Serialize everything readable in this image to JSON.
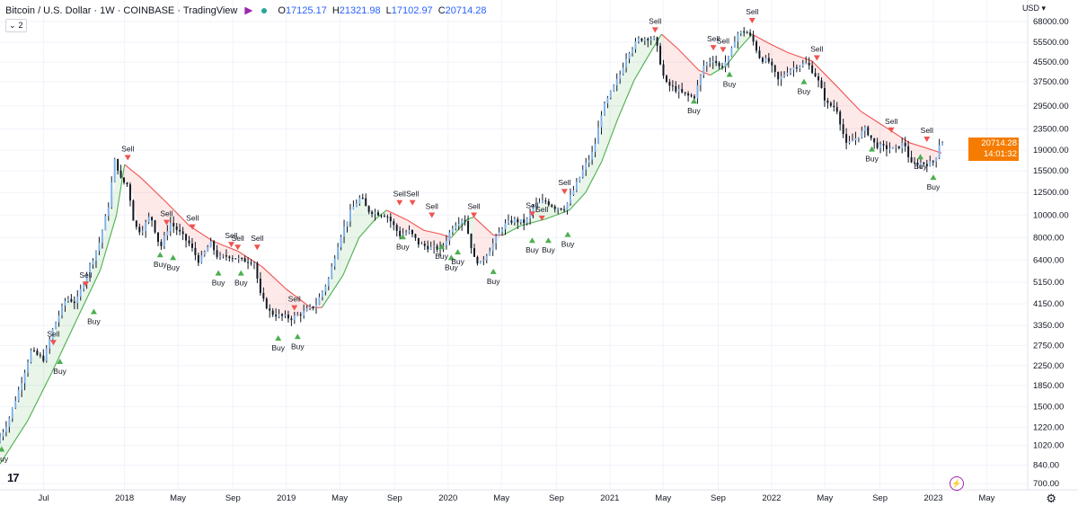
{
  "header": {
    "title": "Bitcoin / U.S. Dollar · 1W · COINBASE · TradingView",
    "ohlc": [
      {
        "k": "O",
        "v": "17125.17"
      },
      {
        "k": "H",
        "v": "21321.98"
      },
      {
        "k": "L",
        "v": "17102.97"
      },
      {
        "k": "C",
        "v": "20714.28"
      }
    ],
    "indicator_toggle": "2",
    "chevron": "⌄",
    "currency": "USD",
    "currency_chevron": "▾"
  },
  "price_tag": {
    "price": "20714.28",
    "countdown": "14:01:32"
  },
  "branding": {
    "logo": "17",
    "bolt": "⚡",
    "gear": "⚙"
  },
  "colors": {
    "bull": "#26a69a",
    "up_body": "#7fb3e8",
    "bar": "#131722",
    "trend_up": "#4caf50",
    "trend_down": "#ef5350",
    "fill_up": "rgba(76,175,80,0.13)",
    "fill_down": "rgba(239,83,80,0.13)",
    "grid": "#f0f3fa",
    "axis_text": "#131722"
  },
  "chart_data": {
    "type": "line",
    "subtype": "candlestick-with-trend-band",
    "ylabel": "USD",
    "y_scale": "log",
    "ylim": [
      700,
      68000
    ],
    "y_ticks": [
      "68000.00",
      "55500.00",
      "45500.00",
      "37500.00",
      "29500.00",
      "23500.00",
      "19000.00",
      "15500.00",
      "12500.00",
      "10000.00",
      "8000.00",
      "6400.00",
      "5150.00",
      "4150.00",
      "3350.00",
      "2750.00",
      "2250.00",
      "1850.00",
      "1500.00",
      "1220.00",
      "1020.00",
      "840.00",
      "700.00"
    ],
    "y_tick_values": [
      68000,
      55500,
      45500,
      37500,
      29500,
      23500,
      19000,
      15500,
      12500,
      10000,
      8000,
      6400,
      5150,
      4150,
      3350,
      2750,
      2250,
      1850,
      1500,
      1220,
      1020,
      840,
      700
    ],
    "x_labels": [
      {
        "label": "Jul",
        "t": 2017.5
      },
      {
        "label": "2018",
        "t": 2018.0
      },
      {
        "label": "May",
        "t": 2018.33
      },
      {
        "label": "Sep",
        "t": 2018.67
      },
      {
        "label": "2019",
        "t": 2019.0
      },
      {
        "label": "May",
        "t": 2019.33
      },
      {
        "label": "Sep",
        "t": 2019.67
      },
      {
        "label": "2020",
        "t": 2020.0
      },
      {
        "label": "May",
        "t": 2020.33
      },
      {
        "label": "Sep",
        "t": 2020.67
      },
      {
        "label": "2021",
        "t": 2021.0
      },
      {
        "label": "May",
        "t": 2021.33
      },
      {
        "label": "Sep",
        "t": 2021.67
      },
      {
        "label": "2022",
        "t": 2022.0
      },
      {
        "label": "May",
        "t": 2022.33
      },
      {
        "label": "Sep",
        "t": 2022.67
      },
      {
        "label": "2023",
        "t": 2023.0
      },
      {
        "label": "May",
        "t": 2023.33
      }
    ],
    "xlim": [
      2017.23,
      2023.55
    ],
    "price_path": [
      [
        2017.23,
        1050
      ],
      [
        2017.3,
        1300
      ],
      [
        2017.38,
        1900
      ],
      [
        2017.44,
        2600
      ],
      [
        2017.48,
        2500
      ],
      [
        2017.52,
        2400
      ],
      [
        2017.58,
        3300
      ],
      [
        2017.66,
        4400
      ],
      [
        2017.72,
        4200
      ],
      [
        2017.78,
        5500
      ],
      [
        2017.86,
        7500
      ],
      [
        2017.92,
        11000
      ],
      [
        2017.96,
        17500
      ],
      [
        2018.0,
        14000
      ],
      [
        2018.04,
        13500
      ],
      [
        2018.08,
        9000
      ],
      [
        2018.12,
        8500
      ],
      [
        2018.18,
        10000
      ],
      [
        2018.24,
        7200
      ],
      [
        2018.3,
        9300
      ],
      [
        2018.36,
        8400
      ],
      [
        2018.42,
        7500
      ],
      [
        2018.48,
        6300
      ],
      [
        2018.55,
        7600
      ],
      [
        2018.6,
        6500
      ],
      [
        2018.66,
        6700
      ],
      [
        2018.74,
        6400
      ],
      [
        2018.82,
        6300
      ],
      [
        2018.86,
        4500
      ],
      [
        2018.92,
        3800
      ],
      [
        2018.97,
        3700
      ],
      [
        2019.05,
        3600
      ],
      [
        2019.12,
        3800
      ],
      [
        2019.2,
        4100
      ],
      [
        2019.28,
        5300
      ],
      [
        2019.35,
        8000
      ],
      [
        2019.42,
        10500
      ],
      [
        2019.48,
        12000
      ],
      [
        2019.52,
        10500
      ],
      [
        2019.58,
        10200
      ],
      [
        2019.64,
        10000
      ],
      [
        2019.72,
        8200
      ],
      [
        2019.78,
        8500
      ],
      [
        2019.84,
        7500
      ],
      [
        2019.92,
        7200
      ],
      [
        2019.98,
        7200
      ],
      [
        2020.05,
        9000
      ],
      [
        2020.12,
        9800
      ],
      [
        2020.18,
        6500
      ],
      [
        2020.22,
        6200
      ],
      [
        2020.28,
        7200
      ],
      [
        2020.36,
        9000
      ],
      [
        2020.42,
        9500
      ],
      [
        2020.5,
        9300
      ],
      [
        2020.55,
        11000
      ],
      [
        2020.62,
        11500
      ],
      [
        2020.68,
        10800
      ],
      [
        2020.74,
        10700
      ],
      [
        2020.8,
        13000
      ],
      [
        2020.86,
        16000
      ],
      [
        2020.92,
        19000
      ],
      [
        2020.97,
        28000
      ],
      [
        2021.02,
        33000
      ],
      [
        2021.08,
        40000
      ],
      [
        2021.13,
        50000
      ],
      [
        2021.2,
        57000
      ],
      [
        2021.26,
        58000
      ],
      [
        2021.3,
        57000
      ],
      [
        2021.36,
        37000
      ],
      [
        2021.42,
        35000
      ],
      [
        2021.48,
        33000
      ],
      [
        2021.54,
        32000
      ],
      [
        2021.6,
        44000
      ],
      [
        2021.66,
        47000
      ],
      [
        2021.7,
        43000
      ],
      [
        2021.76,
        48000
      ],
      [
        2021.8,
        60000
      ],
      [
        2021.86,
        62000
      ],
      [
        2021.9,
        57000
      ],
      [
        2021.95,
        47000
      ],
      [
        2022.0,
        46000
      ],
      [
        2022.06,
        38000
      ],
      [
        2022.12,
        42000
      ],
      [
        2022.18,
        44000
      ],
      [
        2022.24,
        45000
      ],
      [
        2022.3,
        39000
      ],
      [
        2022.36,
        30000
      ],
      [
        2022.42,
        29000
      ],
      [
        2022.48,
        20000
      ],
      [
        2022.54,
        21500
      ],
      [
        2022.6,
        23500
      ],
      [
        2022.66,
        20000
      ],
      [
        2022.72,
        19500
      ],
      [
        2022.78,
        19200
      ],
      [
        2022.84,
        20500
      ],
      [
        2022.88,
        16500
      ],
      [
        2022.94,
        16800
      ],
      [
        2022.99,
        16600
      ],
      [
        2023.03,
        17200
      ],
      [
        2023.06,
        20700
      ]
    ],
    "trend_band": [
      [
        2017.23,
        850,
        "up"
      ],
      [
        2017.4,
        1300,
        "up"
      ],
      [
        2017.55,
        2100,
        "up"
      ],
      [
        2017.7,
        3500,
        "up"
      ],
      [
        2017.85,
        5800,
        "up"
      ],
      [
        2017.95,
        10000,
        "up"
      ],
      [
        2018.0,
        16500,
        "down"
      ],
      [
        2018.1,
        14500,
        "down"
      ],
      [
        2018.25,
        11500,
        "down"
      ],
      [
        2018.4,
        9000,
        "down"
      ],
      [
        2018.55,
        7700,
        "down"
      ],
      [
        2018.7,
        7000,
        "down"
      ],
      [
        2018.85,
        6000,
        "down"
      ],
      [
        2019.0,
        4800,
        "down"
      ],
      [
        2019.15,
        4000,
        "down"
      ],
      [
        2019.22,
        4000,
        "up"
      ],
      [
        2019.35,
        5500,
        "up"
      ],
      [
        2019.45,
        8000,
        "up"
      ],
      [
        2019.55,
        9600,
        "up"
      ],
      [
        2019.62,
        10500,
        "down"
      ],
      [
        2019.75,
        9500,
        "down"
      ],
      [
        2019.85,
        8600,
        "down"
      ],
      [
        2019.95,
        8300,
        "down"
      ],
      [
        2020.02,
        8000,
        "up"
      ],
      [
        2020.12,
        9600,
        "up"
      ],
      [
        2020.16,
        9800,
        "down"
      ],
      [
        2020.28,
        8200,
        "down"
      ],
      [
        2020.34,
        8200,
        "up"
      ],
      [
        2020.45,
        9000,
        "up"
      ],
      [
        2020.6,
        9600,
        "up"
      ],
      [
        2020.75,
        10500,
        "up"
      ],
      [
        2020.85,
        12500,
        "up"
      ],
      [
        2020.95,
        17000,
        "up"
      ],
      [
        2021.05,
        26000,
        "up"
      ],
      [
        2021.15,
        38000,
        "up"
      ],
      [
        2021.25,
        50000,
        "up"
      ],
      [
        2021.32,
        60000,
        "down"
      ],
      [
        2021.42,
        52000,
        "down"
      ],
      [
        2021.55,
        42000,
        "down"
      ],
      [
        2021.62,
        40000,
        "up"
      ],
      [
        2021.72,
        44000,
        "up"
      ],
      [
        2021.8,
        52000,
        "up"
      ],
      [
        2021.88,
        60000,
        "down"
      ],
      [
        2021.98,
        55000,
        "down"
      ],
      [
        2022.1,
        50000,
        "down"
      ],
      [
        2022.25,
        46000,
        "down"
      ],
      [
        2022.4,
        36000,
        "down"
      ],
      [
        2022.55,
        28000,
        "down"
      ],
      [
        2022.7,
        24000,
        "down"
      ],
      [
        2022.85,
        20500,
        "down"
      ],
      [
        2022.95,
        19500,
        "down"
      ],
      [
        2023.05,
        18500,
        "down"
      ]
    ],
    "signals": [
      {
        "type": "Buy",
        "t": 2017.24,
        "price": 1050
      },
      {
        "type": "Sell",
        "t": 2017.56,
        "price": 2800
      },
      {
        "type": "Buy",
        "t": 2017.6,
        "price": 2500
      },
      {
        "type": "Sell",
        "t": 2017.76,
        "price": 5000
      },
      {
        "type": "Buy",
        "t": 2017.81,
        "price": 4100
      },
      {
        "type": "Sell",
        "t": 2018.02,
        "price": 17500
      },
      {
        "type": "Sell",
        "t": 2018.26,
        "price": 9200
      },
      {
        "type": "Buy",
        "t": 2018.22,
        "price": 7200
      },
      {
        "type": "Buy",
        "t": 2018.3,
        "price": 7000
      },
      {
        "type": "Sell",
        "t": 2018.42,
        "price": 8800
      },
      {
        "type": "Buy",
        "t": 2018.58,
        "price": 6000
      },
      {
        "type": "Sell",
        "t": 2018.66,
        "price": 7400
      },
      {
        "type": "Sell",
        "t": 2018.7,
        "price": 7200
      },
      {
        "type": "Buy",
        "t": 2018.72,
        "price": 6000
      },
      {
        "type": "Sell",
        "t": 2018.82,
        "price": 7200
      },
      {
        "type": "Buy",
        "t": 2018.95,
        "price": 3150
      },
      {
        "type": "Sell",
        "t": 2019.05,
        "price": 3950
      },
      {
        "type": "Buy",
        "t": 2019.07,
        "price": 3200
      },
      {
        "type": "Sell",
        "t": 2019.7,
        "price": 11200
      },
      {
        "type": "Sell",
        "t": 2019.78,
        "price": 11200
      },
      {
        "type": "Buy",
        "t": 2019.72,
        "price": 8600
      },
      {
        "type": "Sell",
        "t": 2019.9,
        "price": 9900
      },
      {
        "type": "Buy",
        "t": 2019.96,
        "price": 7800
      },
      {
        "type": "Buy",
        "t": 2020.02,
        "price": 7000
      },
      {
        "type": "Buy",
        "t": 2020.06,
        "price": 7400
      },
      {
        "type": "Sell",
        "t": 2020.16,
        "price": 9900
      },
      {
        "type": "Buy",
        "t": 2020.28,
        "price": 6100
      },
      {
        "type": "Sell",
        "t": 2020.52,
        "price": 10000
      },
      {
        "type": "Sell",
        "t": 2020.58,
        "price": 9600
      },
      {
        "type": "Buy",
        "t": 2020.52,
        "price": 8300
      },
      {
        "type": "Buy",
        "t": 2020.62,
        "price": 8300
      },
      {
        "type": "Sell",
        "t": 2020.72,
        "price": 12500
      },
      {
        "type": "Buy",
        "t": 2020.74,
        "price": 8800
      },
      {
        "type": "Sell",
        "t": 2021.28,
        "price": 62000
      },
      {
        "type": "Buy",
        "t": 2021.52,
        "price": 33000
      },
      {
        "type": "Sell",
        "t": 2021.64,
        "price": 52000
      },
      {
        "type": "Sell",
        "t": 2021.7,
        "price": 51000
      },
      {
        "type": "Buy",
        "t": 2021.74,
        "price": 43000
      },
      {
        "type": "Sell",
        "t": 2021.88,
        "price": 68000
      },
      {
        "type": "Buy",
        "t": 2022.2,
        "price": 40000
      },
      {
        "type": "Sell",
        "t": 2022.28,
        "price": 47000
      },
      {
        "type": "Buy",
        "t": 2022.62,
        "price": 20500
      },
      {
        "type": "Sell",
        "t": 2022.74,
        "price": 23000
      },
      {
        "type": "Buy",
        "t": 2022.92,
        "price": 19000
      },
      {
        "type": "Sell",
        "t": 2022.96,
        "price": 21000
      },
      {
        "type": "Buy",
        "t": 2023.0,
        "price": 15500
      }
    ]
  }
}
